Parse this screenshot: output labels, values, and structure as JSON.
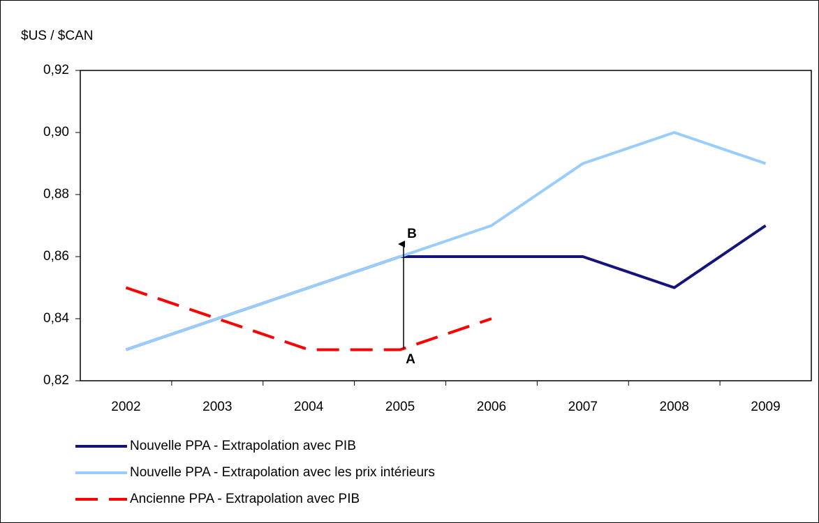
{
  "chart_data": {
    "type": "line",
    "y_label": "$US / $CAN",
    "categories": [
      "2002",
      "2003",
      "2004",
      "2005",
      "2006",
      "2007",
      "2008",
      "2009"
    ],
    "series": [
      {
        "name": "Nouvelle PPA - Extrapolation avec PIB",
        "color": "#14147a",
        "dash": false,
        "values": [
          0.83,
          0.84,
          0.85,
          0.86,
          0.86,
          0.86,
          0.85,
          0.87
        ]
      },
      {
        "name": "Nouvelle PPA - Extrapolation avec les prix intérieurs",
        "color": "#99ccff",
        "dash": false,
        "values": [
          0.83,
          0.84,
          0.85,
          0.86,
          0.87,
          0.89,
          0.9,
          0.89
        ]
      },
      {
        "name": "Ancienne PPA - Extrapolation avec PIB",
        "color": "#ff0000",
        "dash": true,
        "values": [
          0.85,
          0.84,
          0.83,
          0.83,
          0.84,
          null,
          null,
          null
        ]
      }
    ],
    "ylim": [
      0.82,
      0.92
    ],
    "yticks": [
      {
        "value": 0.82,
        "label": "0,82"
      },
      {
        "value": 0.84,
        "label": "0,84"
      },
      {
        "value": 0.86,
        "label": "0,86"
      },
      {
        "value": 0.88,
        "label": "0,88"
      },
      {
        "value": 0.9,
        "label": "0,90"
      },
      {
        "value": 0.92,
        "label": "0,92"
      }
    ],
    "annotations": [
      "A",
      "B"
    ],
    "grid": false,
    "legend": "bottom"
  }
}
